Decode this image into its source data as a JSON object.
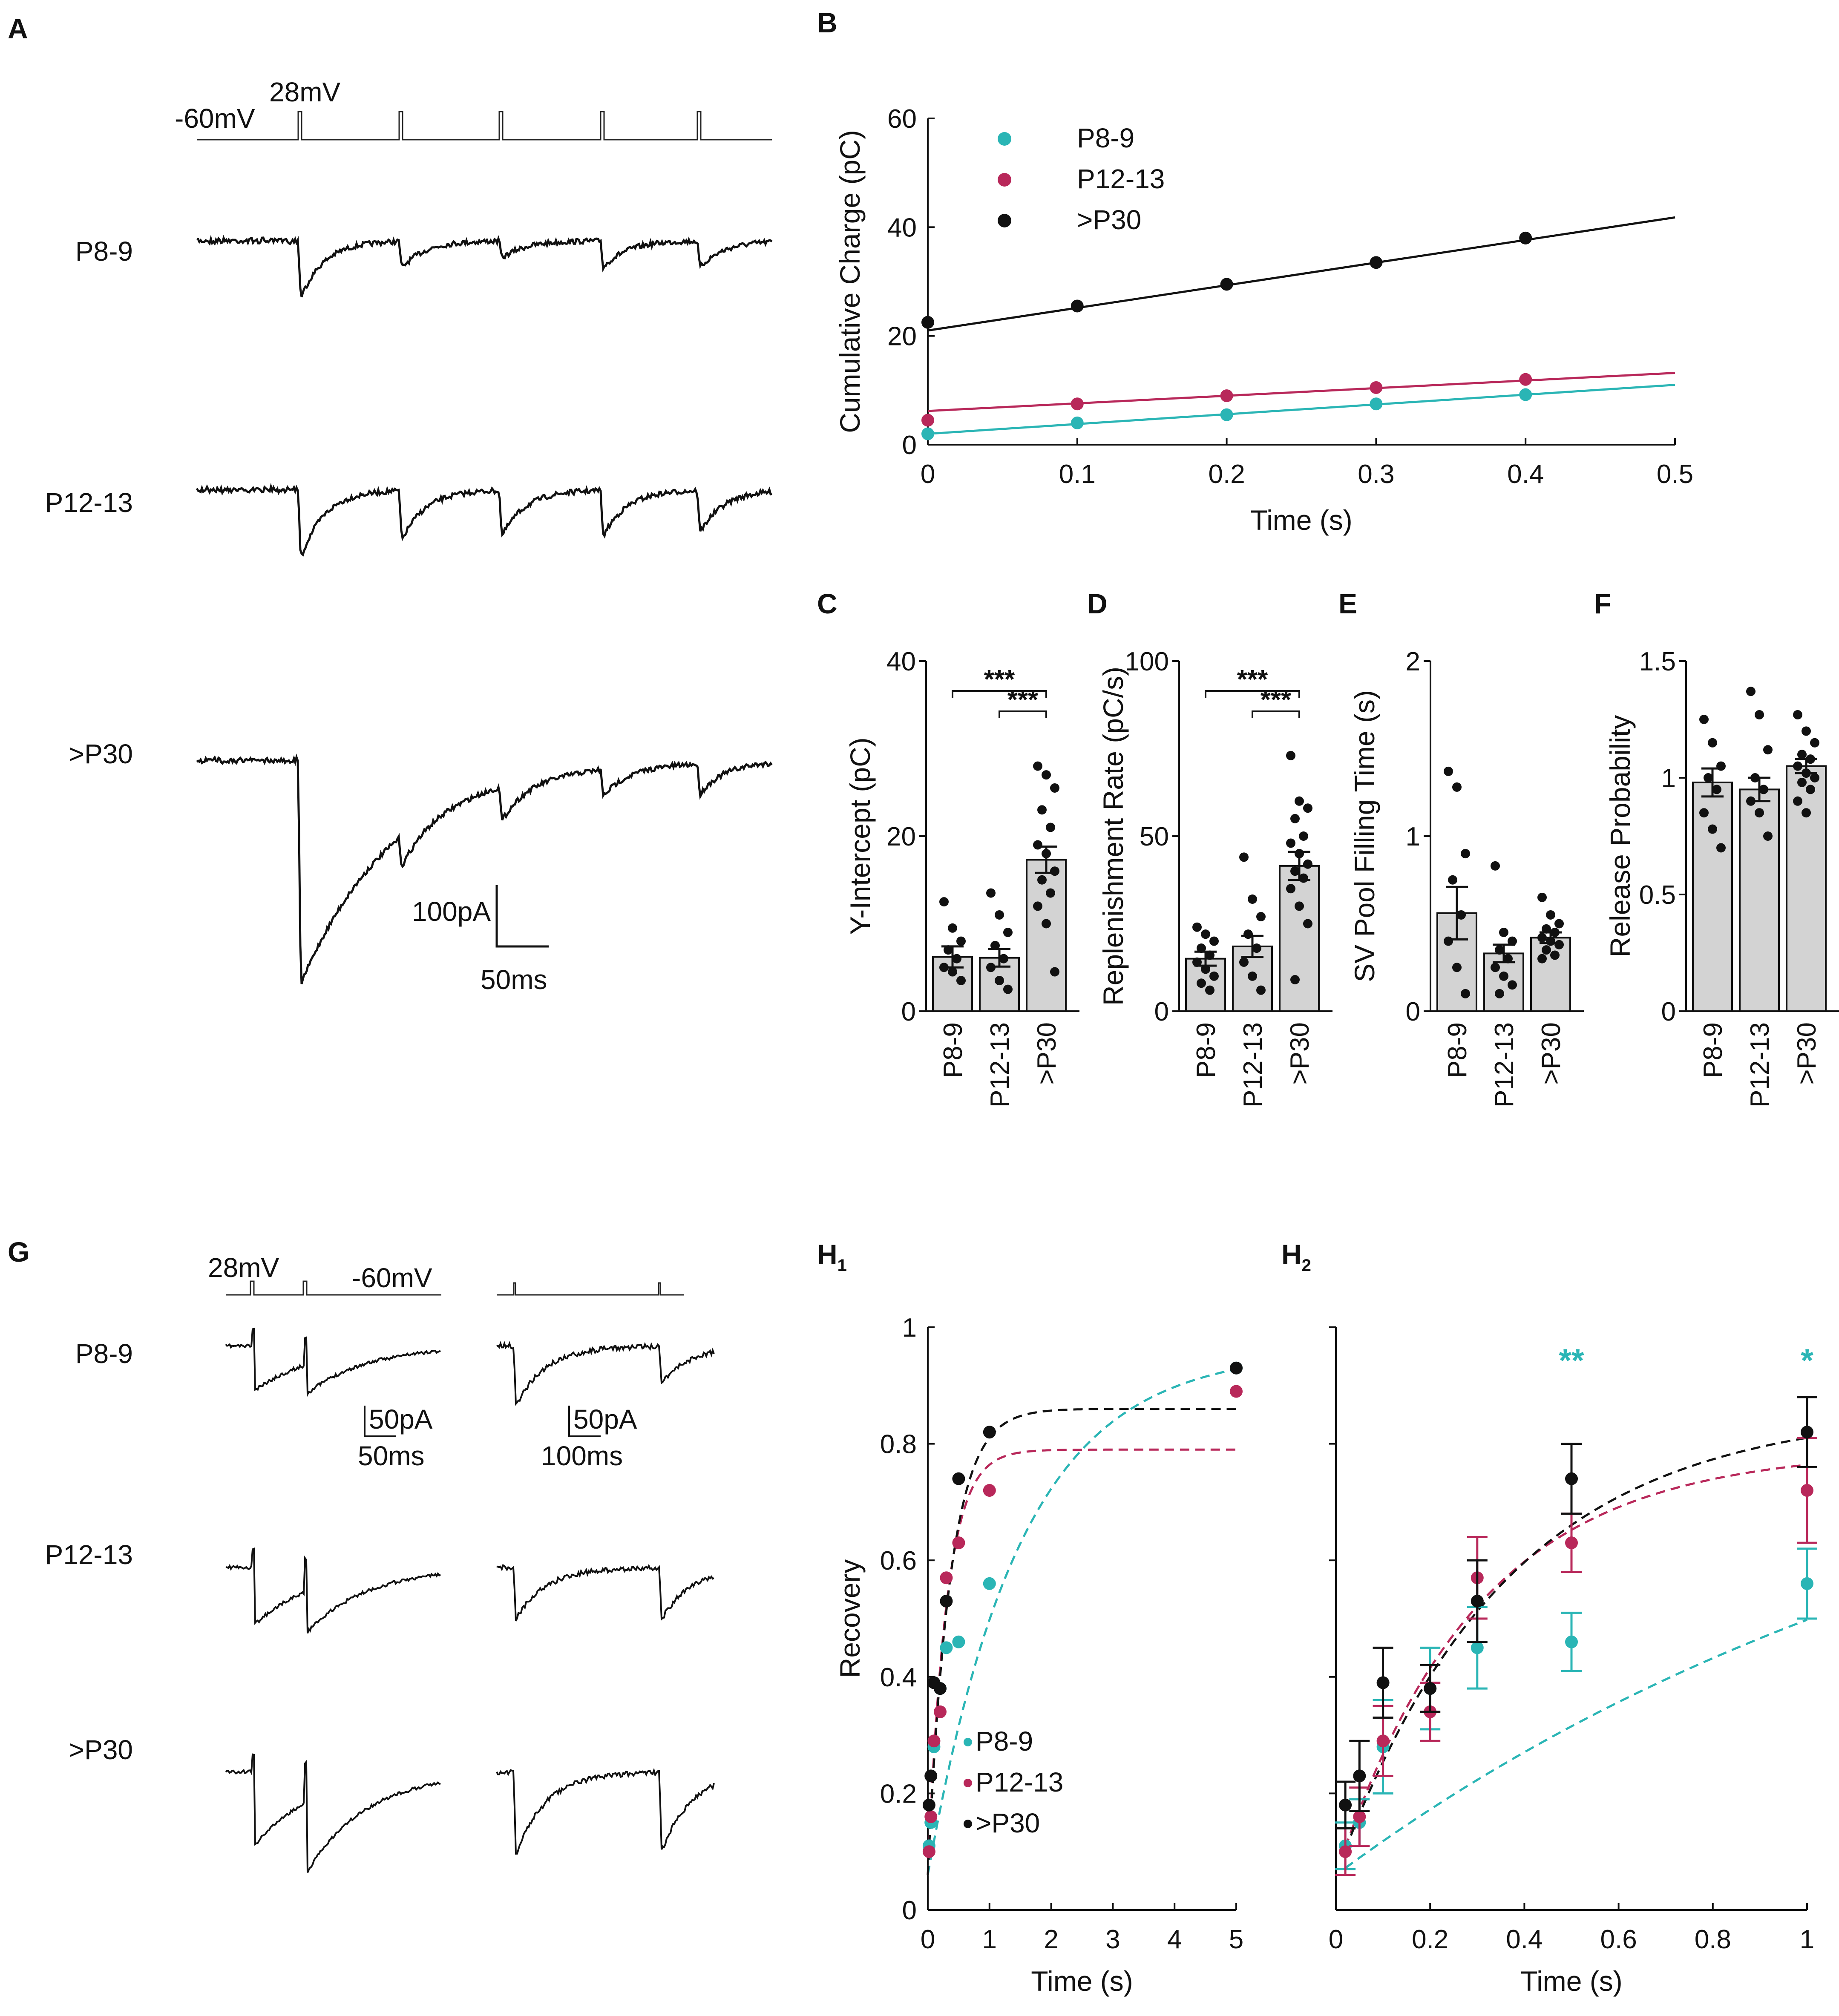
{
  "colors": {
    "P8-9": "#2ab5b5",
    "P12-13": "#b8285a",
    ">P30": "#111111",
    "bar": "#d3d3d3"
  },
  "panels": {
    "A": {
      "label": "A",
      "protocol": {
        "hold": "-60mV",
        "step": "28mV"
      },
      "rows": [
        "P8-9",
        "P12-13",
        ">P30"
      ],
      "scale": {
        "y": "100pA",
        "x": "50ms"
      }
    },
    "G": {
      "label": "G",
      "protocol": {
        "step": "28mV",
        "hold": "-60mV"
      },
      "rows": [
        "P8-9",
        "P12-13",
        ">P30"
      ],
      "scale_left": {
        "y": "50pA",
        "x": "50ms"
      },
      "scale_right": {
        "y": "50pA",
        "x": "100ms"
      }
    }
  },
  "chart_data": [
    {
      "id": "B",
      "label": "B",
      "type": "line+scatter",
      "title": "",
      "xlabel": "Time (s)",
      "ylabel": "Cumulative Charge (pC)",
      "xlim": [
        0,
        0.5
      ],
      "ylim": [
        0,
        60
      ],
      "xticks": [
        "0",
        "0.1",
        "0.2",
        "0.3",
        "0.4",
        "0.5"
      ],
      "yticks": [
        "0",
        "20",
        "40",
        "60"
      ],
      "legend_position": "top-left",
      "series": [
        {
          "name": "P8-9",
          "x": [
            0,
            0.1,
            0.2,
            0.3,
            0.4
          ],
          "y": [
            2,
            4,
            5.5,
            7.5,
            9.2
          ],
          "fit": [
            [
              0,
              2
            ],
            [
              0.5,
              11
            ]
          ]
        },
        {
          "name": "P12-13",
          "x": [
            0,
            0.1,
            0.2,
            0.3,
            0.4
          ],
          "y": [
            4.5,
            7.5,
            9,
            10.5,
            12
          ],
          "fit": [
            [
              0,
              6.2
            ],
            [
              0.5,
              13.2
            ]
          ]
        },
        {
          "name": ">P30",
          "x": [
            0,
            0.1,
            0.2,
            0.3,
            0.4
          ],
          "y": [
            22.5,
            25.5,
            29.5,
            33.5,
            38
          ],
          "fit": [
            [
              0,
              21
            ],
            [
              0.5,
              41.8
            ]
          ]
        }
      ]
    },
    {
      "id": "C",
      "label": "C",
      "type": "bar",
      "ylabel": "Y-Intercept (pC)",
      "ylim": [
        0,
        40
      ],
      "yticks": [
        "0",
        "20",
        "40"
      ],
      "categories": [
        "P8-9",
        "P12-13",
        ">P30"
      ],
      "values": [
        6.2,
        6.1,
        17.3
      ],
      "sem": [
        1.2,
        1.0,
        1.5
      ],
      "points": [
        [
          12.5,
          9.5,
          8,
          7,
          6,
          5,
          4.5,
          3.5
        ],
        [
          13.5,
          11,
          9,
          7.5,
          6,
          5,
          3.5,
          2.5
        ],
        [
          28,
          27,
          25.5,
          23,
          21,
          19,
          18,
          16,
          15,
          13.5,
          12,
          10,
          4.5
        ]
      ],
      "significance": [
        {
          "pair": [
            "P8-9",
            ">P30"
          ],
          "label": "***"
        },
        {
          "pair": [
            "P12-13",
            ">P30"
          ],
          "label": "***"
        }
      ]
    },
    {
      "id": "D",
      "label": "D",
      "type": "bar",
      "ylabel": "Replenishment Rate (pC/s)",
      "ylim": [
        0,
        100
      ],
      "yticks": [
        "0",
        "50",
        "100"
      ],
      "categories": [
        "P8-9",
        "P12-13",
        ">P30"
      ],
      "values": [
        15,
        18.5,
        41.5
      ],
      "sem": [
        2,
        3,
        4
      ],
      "points": [
        [
          24,
          22,
          20,
          18,
          16,
          14,
          12,
          10,
          8,
          6
        ],
        [
          44,
          32,
          27,
          22,
          18,
          14,
          10,
          6
        ],
        [
          73,
          60,
          58,
          55,
          50,
          48,
          45,
          42,
          40,
          38,
          35,
          30,
          25,
          9
        ]
      ],
      "significance": [
        {
          "pair": [
            "P8-9",
            ">P30"
          ],
          "label": "***"
        },
        {
          "pair": [
            "P12-13",
            ">P30"
          ],
          "label": "***"
        }
      ]
    },
    {
      "id": "E",
      "label": "E",
      "type": "bar",
      "ylabel": "SV Pool Filling Time (s)",
      "ylim": [
        0,
        2
      ],
      "yticks": [
        "0",
        "1",
        "2"
      ],
      "categories": [
        "P8-9",
        "P12-13",
        ">P30"
      ],
      "values": [
        0.56,
        0.33,
        0.42
      ],
      "sem": [
        0.15,
        0.05,
        0.03
      ],
      "points": [
        [
          1.37,
          1.28,
          0.9,
          0.75,
          0.55,
          0.4,
          0.25,
          0.1
        ],
        [
          0.83,
          0.45,
          0.4,
          0.35,
          0.3,
          0.25,
          0.2,
          0.15,
          0.1
        ],
        [
          0.65,
          0.55,
          0.5,
          0.47,
          0.45,
          0.42,
          0.4,
          0.38,
          0.35,
          0.32,
          0.3
        ]
      ]
    },
    {
      "id": "F",
      "label": "F",
      "type": "bar",
      "ylabel": "Release Probability",
      "ylim": [
        0,
        1.5
      ],
      "yticks": [
        "0",
        "0.5",
        "1",
        "1.5"
      ],
      "categories": [
        "P8-9",
        "P12-13",
        ">P30"
      ],
      "values": [
        0.98,
        0.95,
        1.05
      ],
      "sem": [
        0.06,
        0.05,
        0.03
      ],
      "points": [
        [
          1.25,
          1.15,
          1.05,
          1.0,
          0.95,
          0.85,
          0.78,
          0.7
        ],
        [
          1.37,
          1.27,
          1.12,
          1.0,
          0.95,
          0.9,
          0.85,
          0.75
        ],
        [
          1.27,
          1.2,
          1.15,
          1.1,
          1.08,
          1.05,
          1.02,
          1.0,
          0.98,
          0.95,
          0.9,
          0.85
        ]
      ]
    },
    {
      "id": "H1",
      "label": "H",
      "sub": "1",
      "type": "scatter+curve",
      "xlabel": "Time (s)",
      "ylabel": "Recovery",
      "xlim": [
        0,
        5
      ],
      "ylim": [
        0,
        1
      ],
      "xticks": [
        "0",
        "1",
        "2",
        "3",
        "4",
        "5"
      ],
      "yticks": [
        "0",
        "0.2",
        "0.4",
        "0.6",
        "0.8",
        "1"
      ],
      "legend_position": "bottom-left",
      "series": [
        {
          "name": "P8-9",
          "x": [
            0.02,
            0.05,
            0.1,
            0.2,
            0.3,
            0.5,
            1,
            5
          ],
          "y": [
            0.11,
            0.15,
            0.28,
            0.38,
            0.45,
            0.46,
            0.56,
            0.93
          ]
        },
        {
          "name": "P12-13",
          "x": [
            0.02,
            0.05,
            0.1,
            0.2,
            0.3,
            0.5,
            1,
            5
          ],
          "y": [
            0.1,
            0.16,
            0.29,
            0.34,
            0.57,
            0.63,
            0.72,
            0.89
          ]
        },
        {
          "name": ">P30",
          "x": [
            0.02,
            0.05,
            0.1,
            0.2,
            0.3,
            0.5,
            1,
            5
          ],
          "y": [
            0.18,
            0.23,
            0.39,
            0.38,
            0.53,
            0.74,
            0.82,
            0.93
          ]
        }
      ],
      "fits": [
        {
          "name": "P8-9",
          "a": 0.06,
          "A": 0.96,
          "tau": 1.5
        },
        {
          "name": "P12-13",
          "a": 0.06,
          "A": 0.79,
          "tau": 0.3
        },
        {
          "name": ">P30",
          "a": 0.06,
          "A": 0.86,
          "tau": 0.36
        }
      ]
    },
    {
      "id": "H2",
      "label": "H",
      "sub": "2",
      "type": "scatter+errorbar",
      "xlabel": "Time (s)",
      "ylabel": "",
      "xlim": [
        0,
        1
      ],
      "ylim": [
        0,
        1
      ],
      "xticks": [
        "0",
        "0.2",
        "0.4",
        "0.6",
        "0.8",
        "1"
      ],
      "series": [
        {
          "name": "P8-9",
          "x": [
            0.02,
            0.05,
            0.1,
            0.2,
            0.3,
            0.5,
            1
          ],
          "y": [
            0.11,
            0.15,
            0.28,
            0.38,
            0.45,
            0.46,
            0.56
          ],
          "err": [
            0.04,
            0.04,
            0.08,
            0.07,
            0.07,
            0.05,
            0.06
          ]
        },
        {
          "name": "P12-13",
          "x": [
            0.02,
            0.05,
            0.1,
            0.2,
            0.3,
            0.5,
            1
          ],
          "y": [
            0.1,
            0.16,
            0.29,
            0.34,
            0.57,
            0.63,
            0.72
          ],
          "err": [
            0.04,
            0.05,
            0.06,
            0.05,
            0.07,
            0.05,
            0.09
          ]
        },
        {
          "name": ">P30",
          "x": [
            0.02,
            0.05,
            0.1,
            0.2,
            0.3,
            0.5,
            1
          ],
          "y": [
            0.18,
            0.23,
            0.39,
            0.38,
            0.53,
            0.74,
            0.82
          ],
          "err": [
            0.04,
            0.06,
            0.06,
            0.04,
            0.07,
            0.06,
            0.06
          ]
        }
      ],
      "annotations": [
        {
          "x": 0.5,
          "text": "**"
        },
        {
          "x": 1,
          "text": "*"
        }
      ]
    }
  ]
}
